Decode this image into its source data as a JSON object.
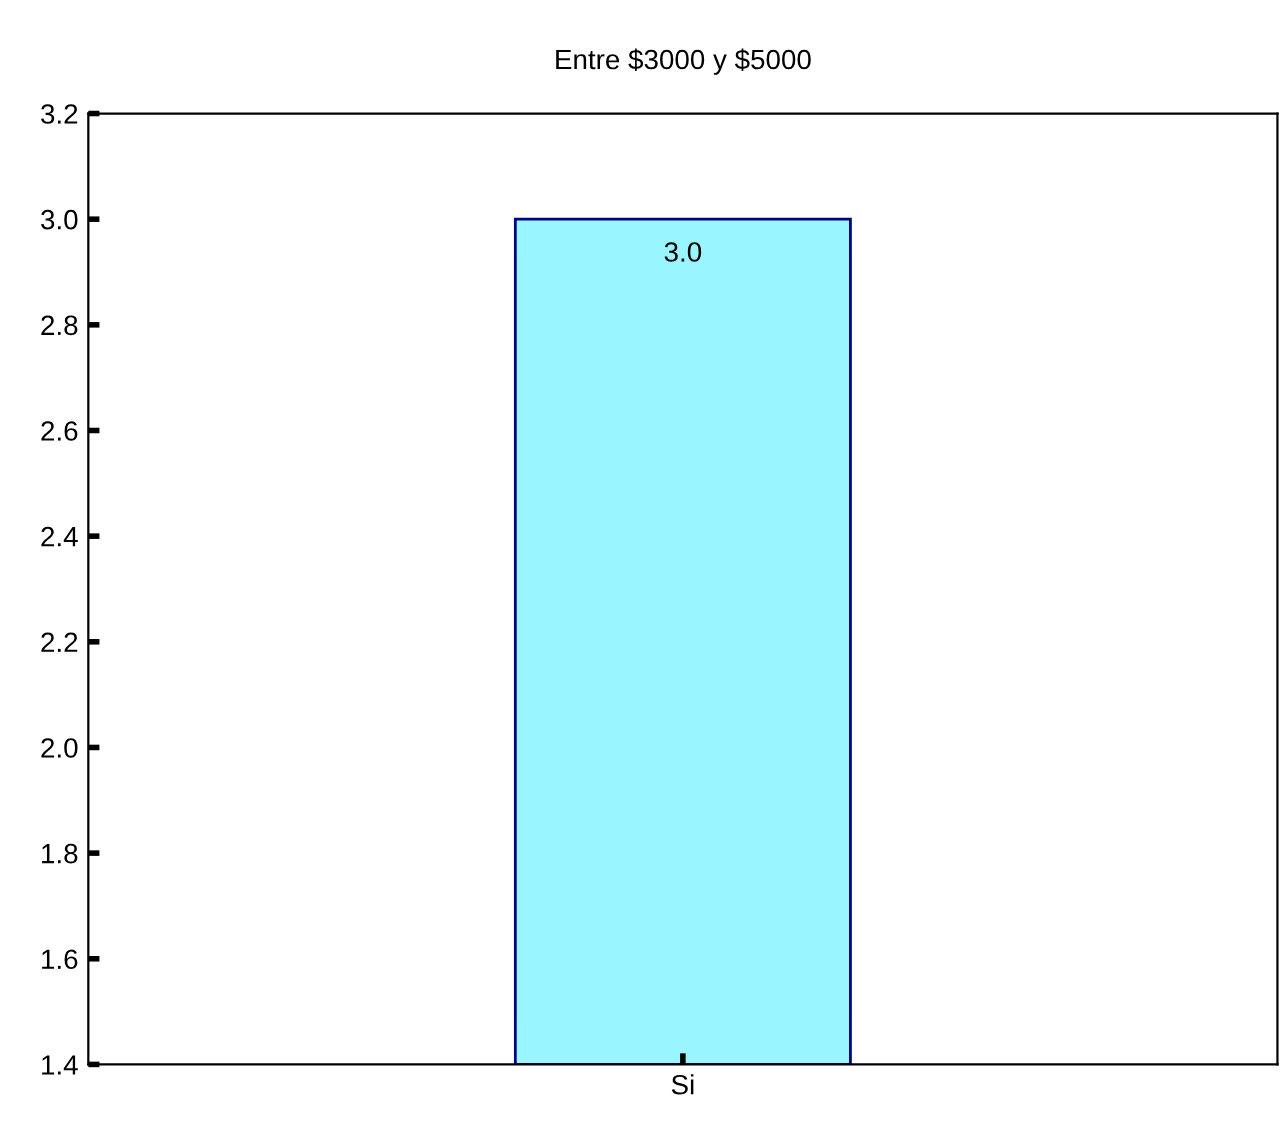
{
  "chart_data": {
    "type": "bar",
    "title": "Entre $3000 y $5000",
    "categories": [
      "Si"
    ],
    "values": [
      3.0
    ],
    "color": "#99f5ff",
    "value_labels": [
      "3.0"
    ],
    "ylim": [
      1.4,
      3.2
    ],
    "yticks": [
      {
        "value": 1.4,
        "label": "1.4"
      },
      {
        "value": 1.6,
        "label": "1.6"
      },
      {
        "value": 1.8,
        "label": "1.8"
      },
      {
        "value": 2.0,
        "label": "2.0"
      },
      {
        "value": 2.2,
        "label": "2.2"
      },
      {
        "value": 2.4,
        "label": "2.4"
      },
      {
        "value": 2.6,
        "label": "2.6"
      },
      {
        "value": 2.8,
        "label": "2.8"
      },
      {
        "value": 3.0,
        "label": "3.0"
      },
      {
        "value": 3.2,
        "label": "3.2"
      }
    ],
    "grid": false
  }
}
